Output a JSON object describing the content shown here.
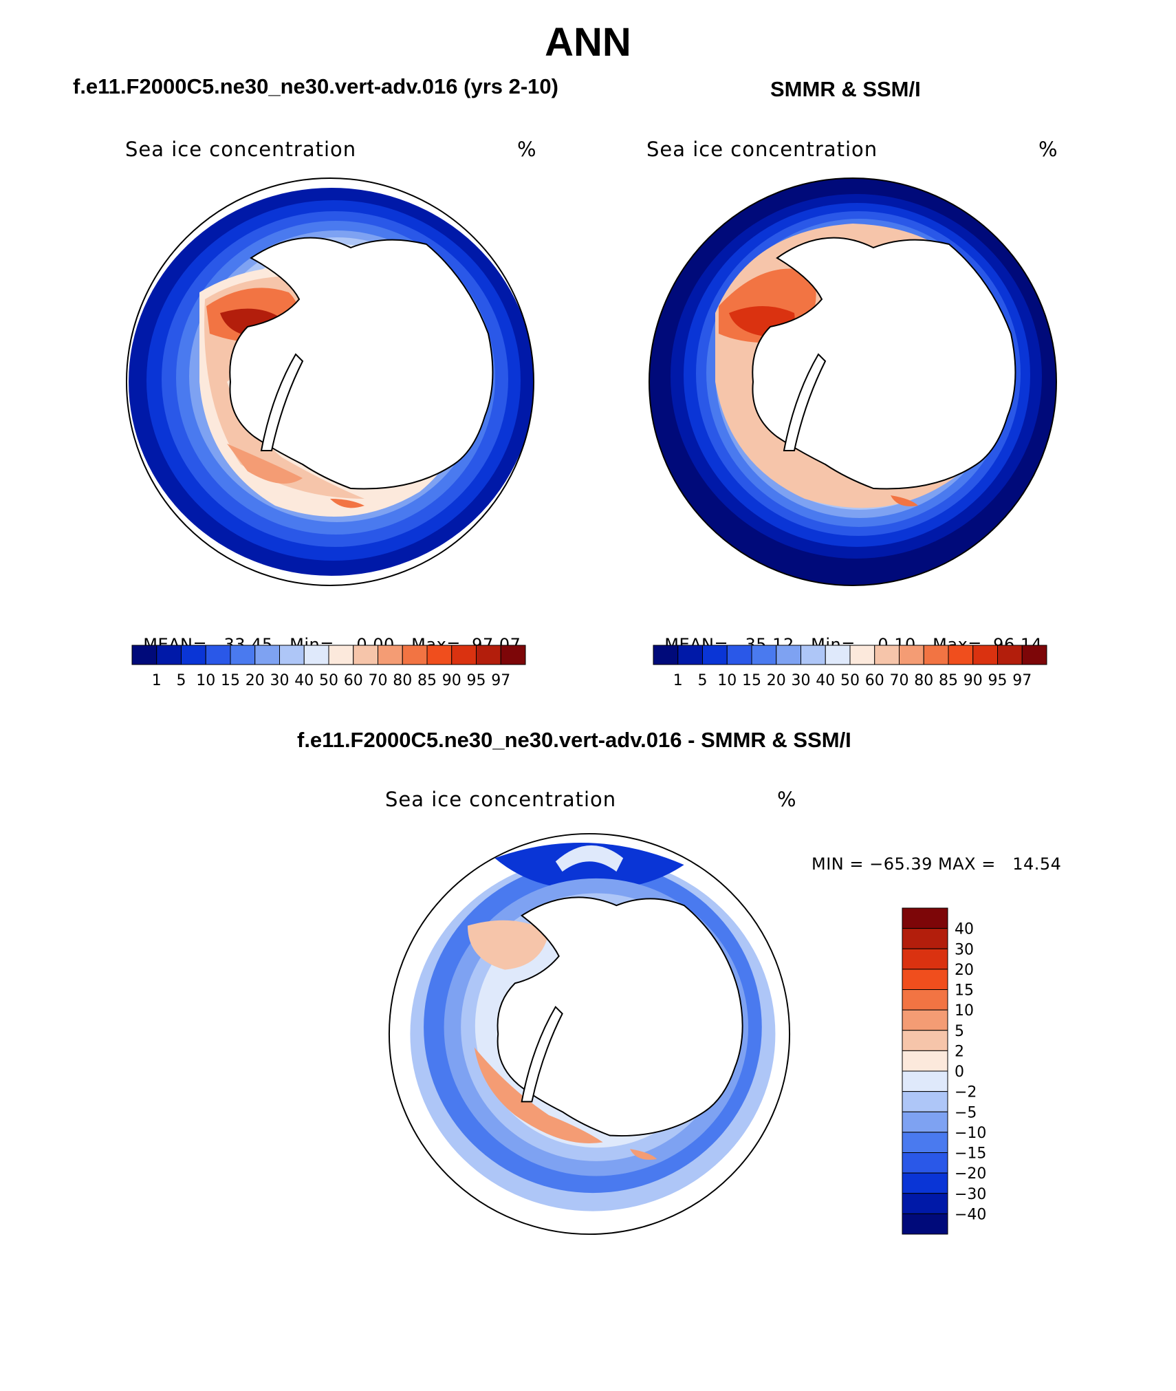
{
  "figure": {
    "title": "ANN",
    "diff_title": "f.e11.F2000C5.ne30_ne30.vert-adv.016 - SMMR & SSM/I"
  },
  "panels": [
    {
      "title": "f.e11.F2000C5.ne30_ne30.vert-adv.016 (yrs 2-10)",
      "subtitle": "Sea ice concentration",
      "units": "%",
      "stats": {
        "mean_label": "MEAN=",
        "mean": "33.45",
        "min_label": "Min=",
        "min": "0.00",
        "max_label": "Max=",
        "max": "97.07"
      }
    },
    {
      "title": "SMMR & SSM/I",
      "subtitle": "Sea ice concentration",
      "units": "%",
      "stats": {
        "mean_label": "MEAN=",
        "mean": "35.12",
        "min_label": "Min=",
        "min": "0.10",
        "max_label": "Max=",
        "max": "96.14"
      }
    }
  ],
  "diff_panel": {
    "subtitle": "Sea ice concentration",
    "units": "%",
    "minmax_text": "MIN = −65.39 MAX =   14.54"
  },
  "colorbar_abs": {
    "colors": [
      "#000a7a",
      "#0019a8",
      "#0a35d6",
      "#2a58e8",
      "#4a7aef",
      "#7ea2f2",
      "#aec6f7",
      "#dfe9fb",
      "#fce9dc",
      "#f6c5aa",
      "#f49c74",
      "#f27443",
      "#f04e1d",
      "#da3210",
      "#b31e0c",
      "#7d0608"
    ],
    "labels": [
      "1",
      "5",
      "10",
      "15",
      "20",
      "30",
      "40",
      "50",
      "60",
      "70",
      "80",
      "85",
      "90",
      "95",
      "97"
    ]
  },
  "colorbar_diff": {
    "colors": [
      "#7d0608",
      "#b31e0c",
      "#da3210",
      "#f04e1d",
      "#f27443",
      "#f49c74",
      "#f6c5aa",
      "#fce9dc",
      "#dfe9fb",
      "#aec6f7",
      "#7ea2f2",
      "#4a7aef",
      "#2a58e8",
      "#0a35d6",
      "#0019a8",
      "#000a7a"
    ],
    "labels": [
      "40",
      "30",
      "20",
      "15",
      "10",
      "5",
      "2",
      "0",
      "−2",
      "−5",
      "−10",
      "−15",
      "−20",
      "−30",
      "−40"
    ]
  }
}
